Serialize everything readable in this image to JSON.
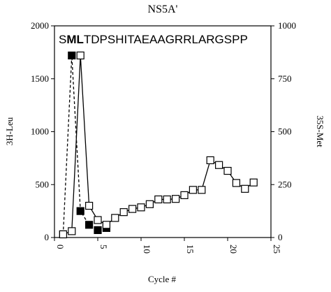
{
  "chart_data": {
    "type": "line",
    "title": "NS5A'",
    "annotation": [
      "S",
      "ML",
      "TDPSHITAEAAGRRLARGSPP"
    ],
    "xlabel": "Cycle #",
    "ylabel": "3H-Leu",
    "y2label": "35S-Met",
    "xlim": [
      0,
      25
    ],
    "xticks": [
      0,
      5,
      10,
      15,
      20,
      25
    ],
    "ylim": [
      0,
      2000
    ],
    "yticks": [
      0,
      500,
      1000,
      1500,
      2000
    ],
    "y2lim": [
      0,
      1000
    ],
    "y2ticks": [
      0,
      250,
      500,
      750,
      1000
    ],
    "series": [
      {
        "color": "#000000",
        "marker": "filled-square",
        "dashed": true,
        "x": [
          1,
          2,
          3,
          4,
          5,
          6
        ],
        "values": [
          30,
          1720,
          250,
          120,
          70,
          90
        ]
      },
      {
        "color": "#000000",
        "marker": "open-square",
        "dashed": false,
        "x": [
          1,
          2,
          3,
          4,
          5,
          6,
          7,
          8,
          9,
          10,
          11,
          12,
          13,
          14,
          15,
          16,
          17,
          18,
          19,
          20,
          21,
          22,
          23
        ],
        "values": [
          30,
          60,
          1720,
          300,
          165,
          120,
          185,
          240,
          270,
          285,
          315,
          360,
          360,
          365,
          400,
          450,
          450,
          730,
          685,
          630,
          515,
          460,
          520
        ]
      }
    ]
  }
}
